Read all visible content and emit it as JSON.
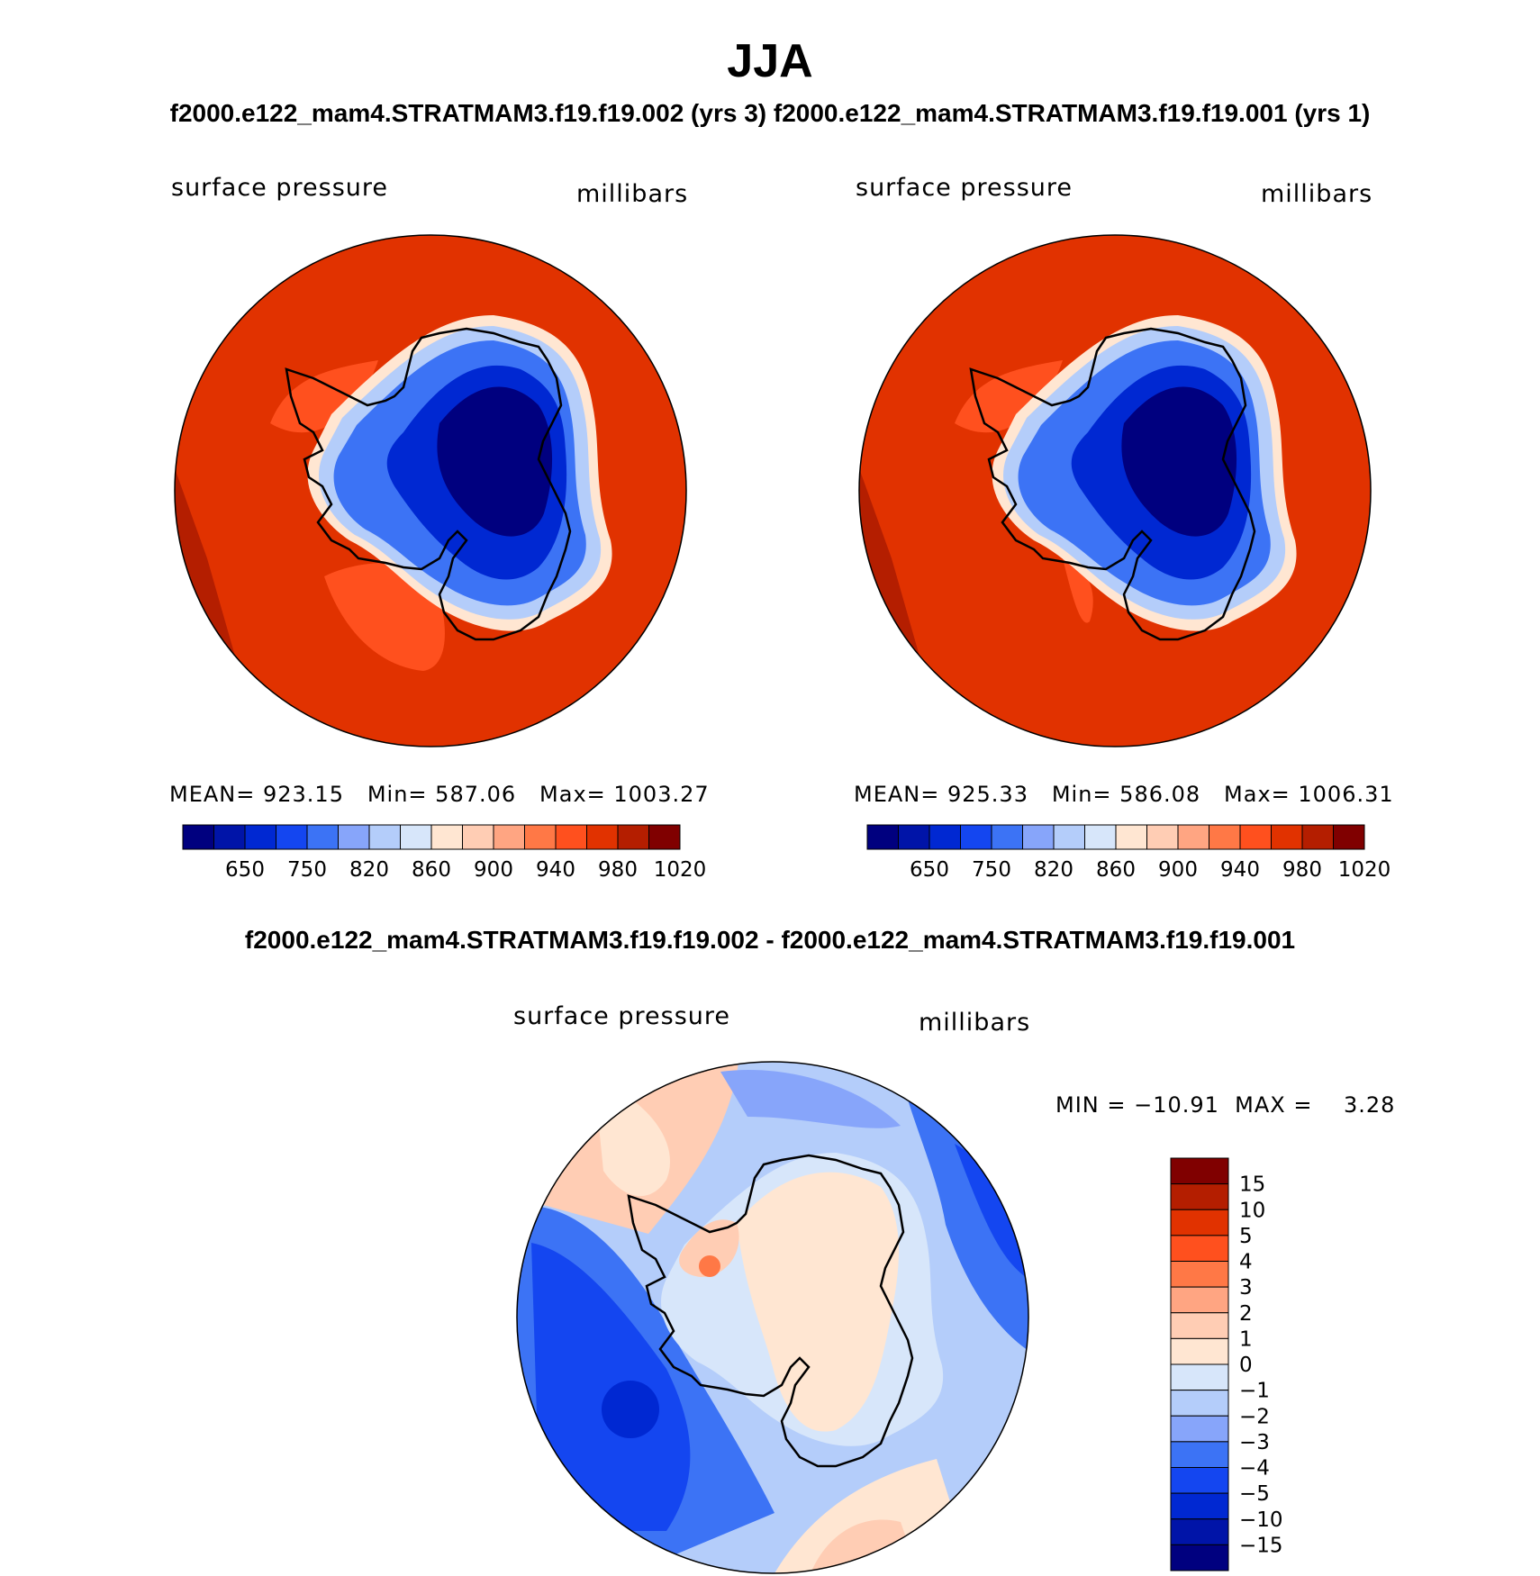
{
  "figure": {
    "season": "JJA",
    "case_a_title": "f2000.e122_mam4.STRATMAM3.f19.f19.002 (yrs 3)",
    "case_b_title": "f2000.e122_mam4.STRATMAM3.f19.f19.001 (yrs 1)",
    "diff_title": "f2000.e122_mam4.STRATMAM3.f19.f19.002 - f2000.e122_mam4.STRATMAM3.f19.f19.001"
  },
  "panels": [
    {
      "variable": "surface pressure",
      "units": "millibars",
      "stats_text": "MEAN= 923.15   Min= 587.06   Max= 1003.27",
      "stats": {
        "mean": 923.15,
        "min": 587.06,
        "max": 1003.27
      }
    },
    {
      "variable": "surface pressure",
      "units": "millibars",
      "stats_text": "MEAN= 925.33   Min= 586.08   Max= 1006.31",
      "stats": {
        "mean": 925.33,
        "min": 586.08,
        "max": 1006.31
      }
    },
    {
      "variable": "surface pressure",
      "units": "millibars",
      "stats_text": "MIN = −10.91  MAX =    3.28",
      "stats": {
        "min": -10.91,
        "max": 3.28
      }
    }
  ],
  "colorbars": {
    "absolute": {
      "levels": [
        "650",
        "750",
        "820",
        "860",
        "900",
        "940",
        "980",
        "1020"
      ],
      "colors": [
        "#00007f",
        "#0014a8",
        "#0028d2",
        "#1446f0",
        "#3c73f5",
        "#87a5fa",
        "#b4cdfa",
        "#d7e6fa",
        "#ffe6d2",
        "#ffcdb4",
        "#ffa582",
        "#ff7846",
        "#ff501e",
        "#e13200",
        "#b41e00",
        "#800000"
      ]
    },
    "difference": {
      "levels": [
        "15",
        "10",
        "5",
        "4",
        "3",
        "2",
        "1",
        "0",
        "−1",
        "−2",
        "−3",
        "−4",
        "−5",
        "−10",
        "−15"
      ],
      "colors": [
        "#800000",
        "#b41e00",
        "#e13200",
        "#ff501e",
        "#ff7846",
        "#ffa582",
        "#ffcdb4",
        "#ffe6d2",
        "#d7e6fa",
        "#b4cdfa",
        "#87a5fa",
        "#3c73f5",
        "#1446f0",
        "#0028d2",
        "#0014a8",
        "#00007f"
      ]
    }
  }
}
